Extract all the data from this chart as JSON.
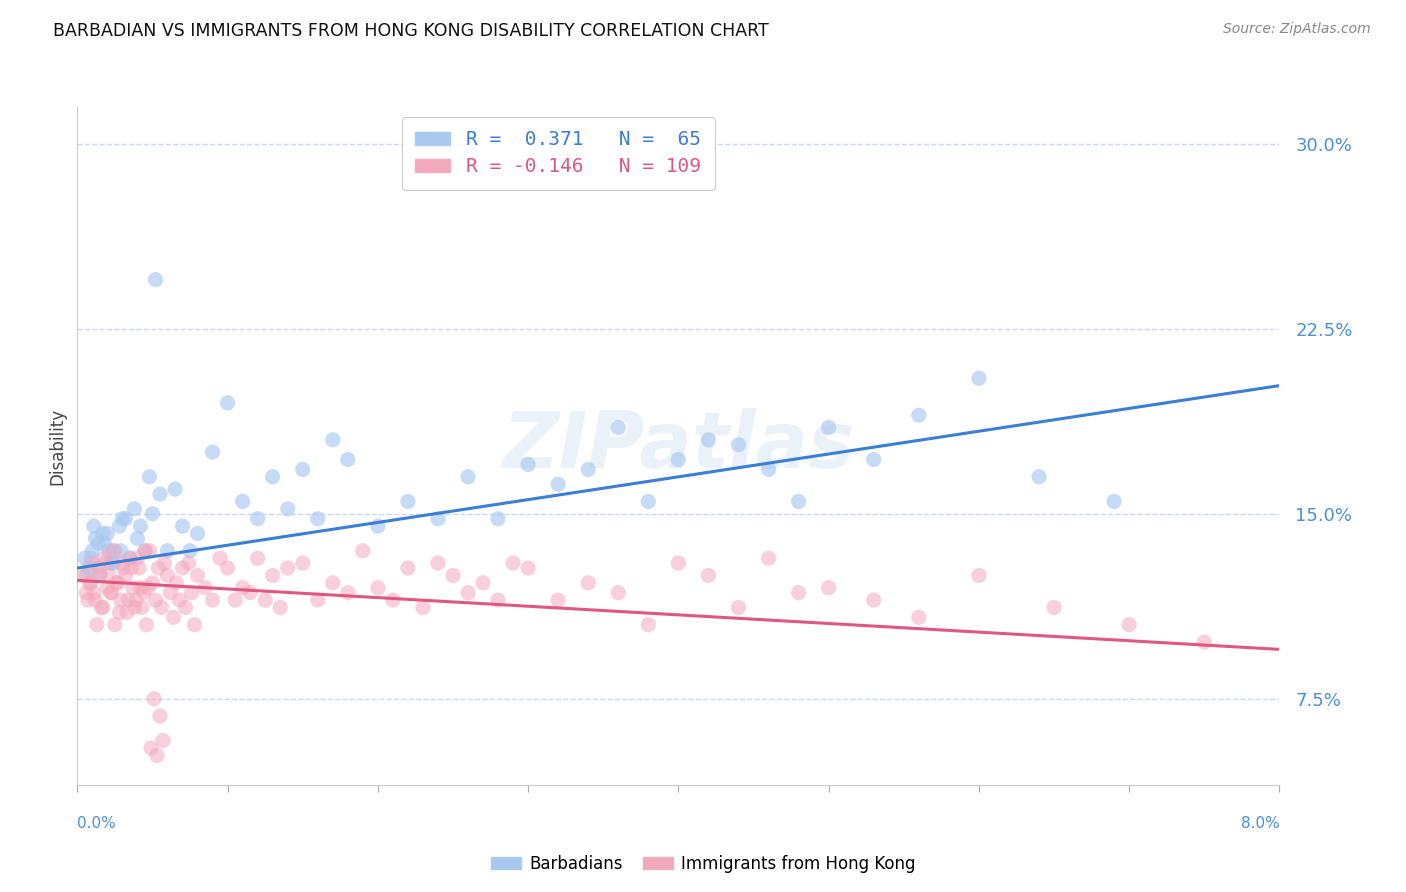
{
  "title": "BARBADIAN VS IMMIGRANTS FROM HONG KONG DISABILITY CORRELATION CHART",
  "source": "Source: ZipAtlas.com",
  "xmin": 0.0,
  "xmax": 8.0,
  "ymin": 4.0,
  "ymax": 31.5,
  "yticks": [
    7.5,
    15.0,
    22.5,
    30.0
  ],
  "ytick_labels": [
    "7.5%",
    "15.0%",
    "22.5%",
    "30.0%"
  ],
  "blue_color": "#a8c8f0",
  "pink_color": "#f4a8bc",
  "blue_line_color": "#3a7fd5",
  "pink_line_color": "#e05880",
  "blue_R": 0.371,
  "blue_N": 65,
  "pink_R": -0.146,
  "pink_N": 109,
  "blue_trend_x0": 0.0,
  "blue_trend_x1": 8.0,
  "blue_trend_y0": 12.8,
  "blue_trend_y1": 20.2,
  "pink_trend_x0": 0.0,
  "pink_trend_x1": 8.0,
  "pink_trend_y0": 12.3,
  "pink_trend_y1": 9.5,
  "blue_x": [
    0.05,
    0.08,
    0.1,
    0.12,
    0.15,
    0.18,
    0.2,
    0.22,
    0.25,
    0.28,
    0.3,
    0.35,
    0.4,
    0.45,
    0.5,
    0.55,
    0.6,
    0.65,
    0.7,
    0.75,
    0.8,
    0.9,
    1.0,
    1.1,
    1.2,
    1.3,
    1.4,
    1.5,
    1.6,
    1.7,
    1.8,
    2.0,
    2.2,
    2.4,
    2.6,
    2.8,
    3.0,
    3.2,
    3.4,
    3.6,
    3.8,
    4.0,
    4.2,
    4.4,
    4.6,
    4.8,
    5.0,
    5.3,
    5.6,
    6.0,
    6.4,
    6.9,
    0.06,
    0.09,
    0.11,
    0.14,
    0.17,
    0.21,
    0.24,
    0.29,
    0.32,
    0.38,
    0.42,
    0.48,
    0.52
  ],
  "blue_y": [
    13.2,
    12.8,
    13.5,
    14.0,
    12.5,
    13.8,
    14.2,
    13.0,
    13.5,
    14.5,
    14.8,
    13.2,
    14.0,
    13.5,
    15.0,
    15.8,
    13.5,
    16.0,
    14.5,
    13.5,
    14.2,
    17.5,
    19.5,
    15.5,
    14.8,
    16.5,
    15.2,
    16.8,
    14.8,
    18.0,
    17.2,
    14.5,
    15.5,
    14.8,
    16.5,
    14.8,
    17.0,
    16.2,
    16.8,
    18.5,
    15.5,
    17.2,
    18.0,
    17.8,
    16.8,
    15.5,
    18.5,
    17.2,
    19.0,
    20.5,
    16.5,
    15.5,
    12.5,
    13.2,
    14.5,
    13.8,
    14.2,
    13.5,
    13.0,
    13.5,
    14.8,
    15.2,
    14.5,
    16.5,
    24.5
  ],
  "pink_x": [
    0.04,
    0.06,
    0.08,
    0.1,
    0.12,
    0.14,
    0.16,
    0.18,
    0.2,
    0.22,
    0.24,
    0.26,
    0.28,
    0.3,
    0.32,
    0.34,
    0.36,
    0.38,
    0.4,
    0.42,
    0.44,
    0.46,
    0.48,
    0.5,
    0.52,
    0.54,
    0.56,
    0.58,
    0.6,
    0.62,
    0.64,
    0.66,
    0.68,
    0.7,
    0.72,
    0.74,
    0.76,
    0.78,
    0.8,
    0.85,
    0.9,
    0.95,
    1.0,
    1.05,
    1.1,
    1.15,
    1.2,
    1.25,
    1.3,
    1.35,
    1.4,
    1.5,
    1.6,
    1.7,
    1.8,
    1.9,
    2.0,
    2.1,
    2.2,
    2.3,
    2.4,
    2.5,
    2.6,
    2.7,
    2.8,
    2.9,
    3.0,
    3.2,
    3.4,
    3.6,
    3.8,
    4.0,
    4.2,
    4.4,
    4.6,
    4.8,
    5.0,
    5.3,
    5.6,
    6.0,
    6.5,
    7.0,
    7.5,
    0.07,
    0.09,
    0.11,
    0.13,
    0.15,
    0.17,
    0.19,
    0.21,
    0.23,
    0.25,
    0.27,
    0.29,
    0.31,
    0.33,
    0.35,
    0.37,
    0.39,
    0.41,
    0.43,
    0.45,
    0.47,
    0.49,
    0.51,
    0.53,
    0.55,
    0.57
  ],
  "pink_y": [
    12.5,
    11.8,
    12.2,
    13.0,
    11.5,
    12.8,
    11.2,
    13.2,
    12.0,
    11.8,
    13.5,
    12.2,
    11.0,
    13.0,
    12.5,
    11.5,
    12.8,
    11.2,
    13.2,
    12.0,
    11.8,
    10.5,
    13.5,
    12.2,
    11.5,
    12.8,
    11.2,
    13.0,
    12.5,
    11.8,
    10.8,
    12.2,
    11.5,
    12.8,
    11.2,
    13.0,
    11.8,
    10.5,
    12.5,
    12.0,
    11.5,
    13.2,
    12.8,
    11.5,
    12.0,
    11.8,
    13.2,
    11.5,
    12.5,
    11.2,
    12.8,
    13.0,
    11.5,
    12.2,
    11.8,
    13.5,
    12.0,
    11.5,
    12.8,
    11.2,
    13.0,
    12.5,
    11.8,
    12.2,
    11.5,
    13.0,
    12.8,
    11.5,
    12.2,
    11.8,
    10.5,
    13.0,
    12.5,
    11.2,
    13.2,
    11.8,
    12.0,
    11.5,
    10.8,
    12.5,
    11.2,
    10.5,
    9.8,
    11.5,
    12.2,
    11.8,
    10.5,
    12.5,
    11.2,
    13.0,
    12.5,
    11.8,
    10.5,
    12.2,
    11.5,
    12.8,
    11.0,
    13.2,
    12.0,
    11.5,
    12.8,
    11.2,
    13.5,
    12.0,
    5.5,
    7.5,
    5.2,
    6.8,
    5.8
  ],
  "watermark": "ZIPatlas",
  "ylabel": "Disability"
}
